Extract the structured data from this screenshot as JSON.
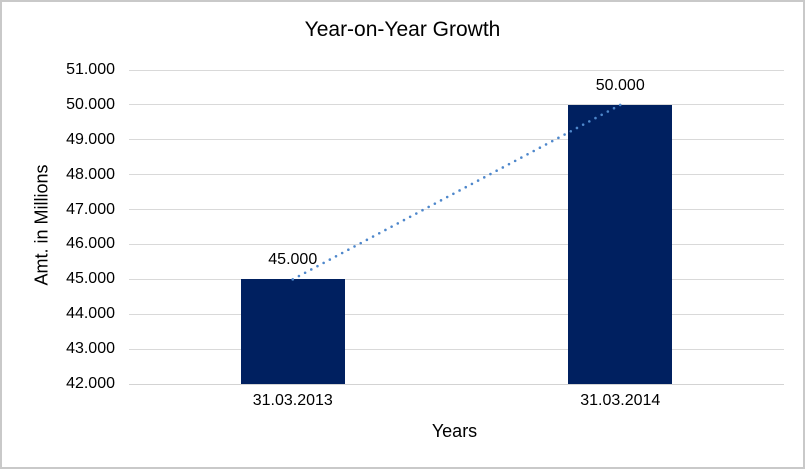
{
  "chart": {
    "background": "#FFFFFF",
    "border_color": "#C9C9C9"
  },
  "chart_data": {
    "type": "bar",
    "title": "Year-on-Year Growth",
    "xlabel": "Years",
    "ylabel": "Amt. in Millions",
    "categories": [
      "31.03.2013",
      "31.03.2014"
    ],
    "series": [
      {
        "name": "Amt. in Millions",
        "values": [
          45000,
          50000
        ],
        "data_labels": [
          "45.000",
          "50.000"
        ]
      }
    ],
    "ylim": [
      42000,
      51000
    ],
    "y_tick_step": 1000,
    "y_ticks": [
      {
        "value": 51000,
        "label": "51.000"
      },
      {
        "value": 50000,
        "label": "50.000"
      },
      {
        "value": 49000,
        "label": "49.000"
      },
      {
        "value": 48000,
        "label": "48.000"
      },
      {
        "value": 47000,
        "label": "47.000"
      },
      {
        "value": 46000,
        "label": "46.000"
      },
      {
        "value": 45000,
        "label": "45.000"
      },
      {
        "value": 44000,
        "label": "44.000"
      },
      {
        "value": 43000,
        "label": "43.000"
      },
      {
        "value": 42000,
        "label": "42.000"
      }
    ],
    "grid": true,
    "legend": false,
    "bar_color": "#002060",
    "gridline_color": "#D9D9D9",
    "axis_line_color": "#D3D3D3",
    "text_color": "#000000",
    "trendline": {
      "type": "linear",
      "style": "dotted",
      "color": "#4E87CB"
    }
  }
}
